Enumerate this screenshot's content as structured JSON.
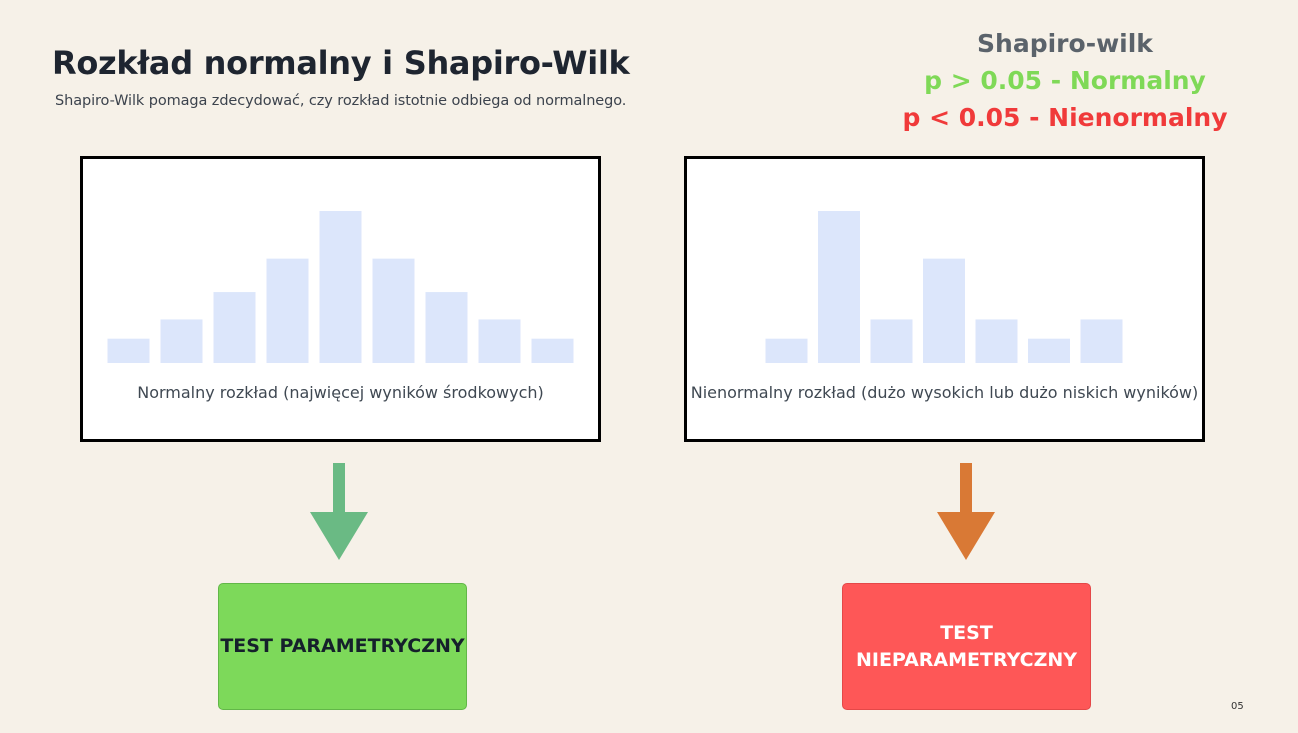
{
  "slide": {
    "title": "Rozkład normalny i Shapiro-Wilk",
    "subtitle": "Shapiro-Wilk pomaga zdecydować, czy rozkład istotnie odbiega od normalnego.",
    "page_number": "05"
  },
  "legend": {
    "heading": "Shapiro-wilk",
    "normal_rule": "p > 0.05 - Normalny",
    "nonnormal_rule": "p < 0.05 - Nienormalny",
    "normal_color": "#7fd957",
    "nonnormal_color": "#f03a3a"
  },
  "panels": {
    "normal": {
      "caption": "Normalny rozkład (najwięcej wyników środkowych)"
    },
    "nonnormal": {
      "caption": "Nienormalny rozkład (dużo wysokich lub dużo niskich wyników)"
    }
  },
  "results": {
    "parametric": "TEST PARAMETRYCZNY",
    "nonparametric": "TEST NIEPARAMETRYCZNY",
    "parametric_color": "#7dd95a",
    "nonparametric_color": "#fe5757"
  },
  "arrows": {
    "normal_color": "#6aba84",
    "nonnormal_color": "#d97935"
  },
  "chart_data": [
    {
      "type": "bar",
      "bar_color": "#dce6fb",
      "values": [
        24,
        43,
        70,
        103,
        150,
        103,
        70,
        43,
        24
      ],
      "ylim": [
        0,
        150
      ],
      "xlabel": "",
      "ylabel": ""
    },
    {
      "type": "bar",
      "bar_color": "#dce6fb",
      "values": [
        24,
        150,
        43,
        103,
        43,
        24,
        43
      ],
      "ylim": [
        0,
        150
      ],
      "xlabel": "",
      "ylabel": ""
    }
  ]
}
